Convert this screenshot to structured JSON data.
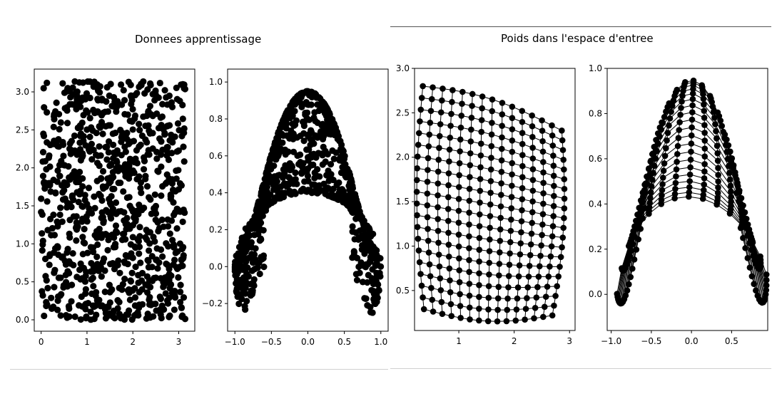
{
  "left_panel": {
    "title": "Donnees apprentissage"
  },
  "right_panel": {
    "title": "Poids dans l'espace d'entree"
  },
  "colors": {
    "marker": "#000000",
    "axes": "#000000",
    "divider_dark": "#555555",
    "divider_light": "#d0d0d0"
  },
  "chart_data": [
    {
      "id": "training-uniform",
      "type": "scatter",
      "title": "",
      "xlabel": "",
      "ylabel": "",
      "xlim": [
        -0.15,
        3.35
      ],
      "ylim": [
        -0.15,
        3.3
      ],
      "xticks": [
        0,
        1,
        2,
        3
      ],
      "xtick_labels": [
        "0",
        "1",
        "2",
        "3"
      ],
      "yticks": [
        0.0,
        0.5,
        1.0,
        1.5,
        2.0,
        2.5,
        3.0
      ],
      "ytick_labels": [
        "0.0",
        "0.5",
        "1.0",
        "1.5",
        "2.0",
        "2.5",
        "3.0"
      ],
      "grid": false,
      "distribution": {
        "kind": "uniform",
        "n": 900,
        "x_range": [
          0,
          3.14
        ],
        "y_range": [
          0,
          3.14
        ]
      }
    },
    {
      "id": "training-transformed",
      "type": "scatter",
      "title": "",
      "xlabel": "",
      "ylabel": "",
      "xlim": [
        -1.1,
        1.1
      ],
      "ylim": [
        -0.35,
        1.07
      ],
      "xticks": [
        -1.0,
        -0.5,
        0.0,
        0.5,
        1.0
      ],
      "xtick_labels": [
        "−1.0",
        "−0.5",
        "0.0",
        "0.5",
        "1.0"
      ],
      "yticks": [
        -0.2,
        0.0,
        0.2,
        0.4,
        0.6,
        0.8,
        1.0
      ],
      "ytick_labels": [
        "−0.2",
        "0.0",
        "0.2",
        "0.4",
        "0.6",
        "0.8",
        "1.0"
      ],
      "grid": false,
      "distribution": {
        "kind": "transformed-uniform",
        "n": 900
      }
    },
    {
      "id": "weights-uniform",
      "type": "line",
      "title": "",
      "xlabel": "",
      "ylabel": "",
      "xlim": [
        0.2,
        3.1
      ],
      "ylim": [
        0.05,
        3.0
      ],
      "xticks": [
        1,
        2,
        3
      ],
      "xtick_labels": [
        "1",
        "2",
        "3"
      ],
      "yticks": [
        0.5,
        1.0,
        1.5,
        2.0,
        2.5,
        3.0
      ],
      "ytick_labels": [
        "0.5",
        "1.0",
        "1.5",
        "2.0",
        "2.5",
        "3.0"
      ],
      "grid": false,
      "lattice": {
        "cols": 15,
        "rows": 20,
        "corners": {
          "bottom_left": [
            0.37,
            0.29
          ],
          "bottom_right": [
            2.69,
            0.22
          ],
          "top_left": [
            0.35,
            2.8
          ],
          "top_right": [
            2.86,
            2.3
          ]
        }
      }
    },
    {
      "id": "weights-transformed",
      "type": "line",
      "title": "",
      "xlabel": "",
      "ylabel": "",
      "xlim": [
        -1.05,
        0.95
      ],
      "ylim": [
        -0.16,
        1.0
      ],
      "xticks": [
        -1.0,
        -0.5,
        0.0,
        0.5
      ],
      "xtick_labels": [
        "−1.0",
        "−0.5",
        "0.0",
        "0.5"
      ],
      "yticks": [
        0.0,
        0.2,
        0.4,
        0.6,
        0.8,
        1.0
      ],
      "ytick_labels": [
        "0.0",
        "0.2",
        "0.4",
        "0.6",
        "0.8",
        "1.0"
      ],
      "grid": false,
      "lattice": {
        "cols": 15,
        "rows": 20,
        "derived_from": "weights-uniform"
      }
    }
  ]
}
